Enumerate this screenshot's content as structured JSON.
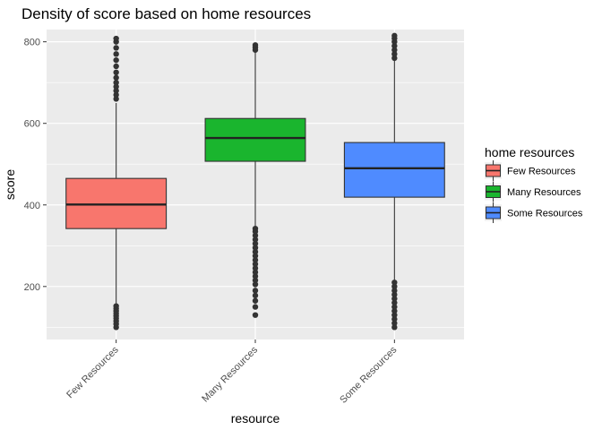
{
  "chart_data": {
    "type": "boxplot",
    "title": "Density of score based on home resources",
    "xlabel": "resource",
    "ylabel": "score",
    "ylim": [
      70,
      830
    ],
    "yticks": [
      200,
      400,
      600,
      800
    ],
    "grid": true,
    "legend": {
      "title": "home resources",
      "placement": "right"
    },
    "categories": [
      "Few Resources",
      "Many Resources",
      "Some Resources"
    ],
    "series": [
      {
        "name": "Few Resources",
        "color": "#F8766D",
        "min": 155,
        "q1": 342,
        "median": 401,
        "q3": 465,
        "max": 650,
        "outliers": [
          100,
          108,
          115,
          122,
          128,
          134,
          140,
          146,
          152,
          660,
          670,
          680,
          690,
          700,
          712,
          725,
          740,
          755,
          770,
          785,
          800,
          808
        ]
      },
      {
        "name": "Many Resources",
        "color": "#1AB52E",
        "min": 345,
        "q1": 507,
        "median": 564,
        "q3": 612,
        "max": 775,
        "outliers": [
          130,
          150,
          165,
          178,
          190,
          205,
          215,
          225,
          235,
          245,
          255,
          265,
          275,
          285,
          295,
          305,
          315,
          325,
          335,
          342,
          780,
          786,
          792
        ]
      },
      {
        "name": "Some Resources",
        "color": "#4F8BFF",
        "min": 215,
        "q1": 419,
        "median": 490,
        "q3": 553,
        "max": 755,
        "outliers": [
          100,
          110,
          120,
          130,
          140,
          150,
          160,
          170,
          180,
          190,
          200,
          210,
          760,
          770,
          780,
          790,
          800,
          808,
          815
        ]
      }
    ]
  }
}
